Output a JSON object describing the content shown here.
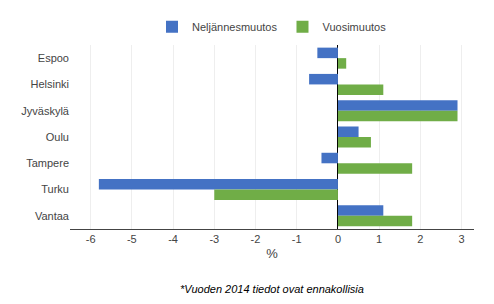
{
  "chart_data": {
    "type": "bar",
    "orientation": "horizontal",
    "categories": [
      "Espoo",
      "Helsinki",
      "Jyväskylä",
      "Oulu",
      "Tampere",
      "Turku",
      "Vantaa"
    ],
    "series": [
      {
        "name": "Neljännesmuutos",
        "color": "#4472C4",
        "values": [
          -0.5,
          -0.7,
          2.9,
          0.5,
          -0.4,
          -5.8,
          1.1
        ]
      },
      {
        "name": "Vuosimuutos",
        "color": "#70AD47",
        "values": [
          0.2,
          1.1,
          2.9,
          0.8,
          1.8,
          -3.0,
          1.8
        ]
      }
    ],
    "xlabel": "%",
    "xlim": [
      -6.5,
      3.3
    ],
    "xticks": [
      -6,
      -5,
      -4,
      -3,
      -2,
      -1,
      0,
      1,
      2,
      3
    ],
    "grid": true,
    "legend": "top",
    "annotations": [
      "*Vuoden 2014 tiedot ovat ennakollisia"
    ]
  }
}
